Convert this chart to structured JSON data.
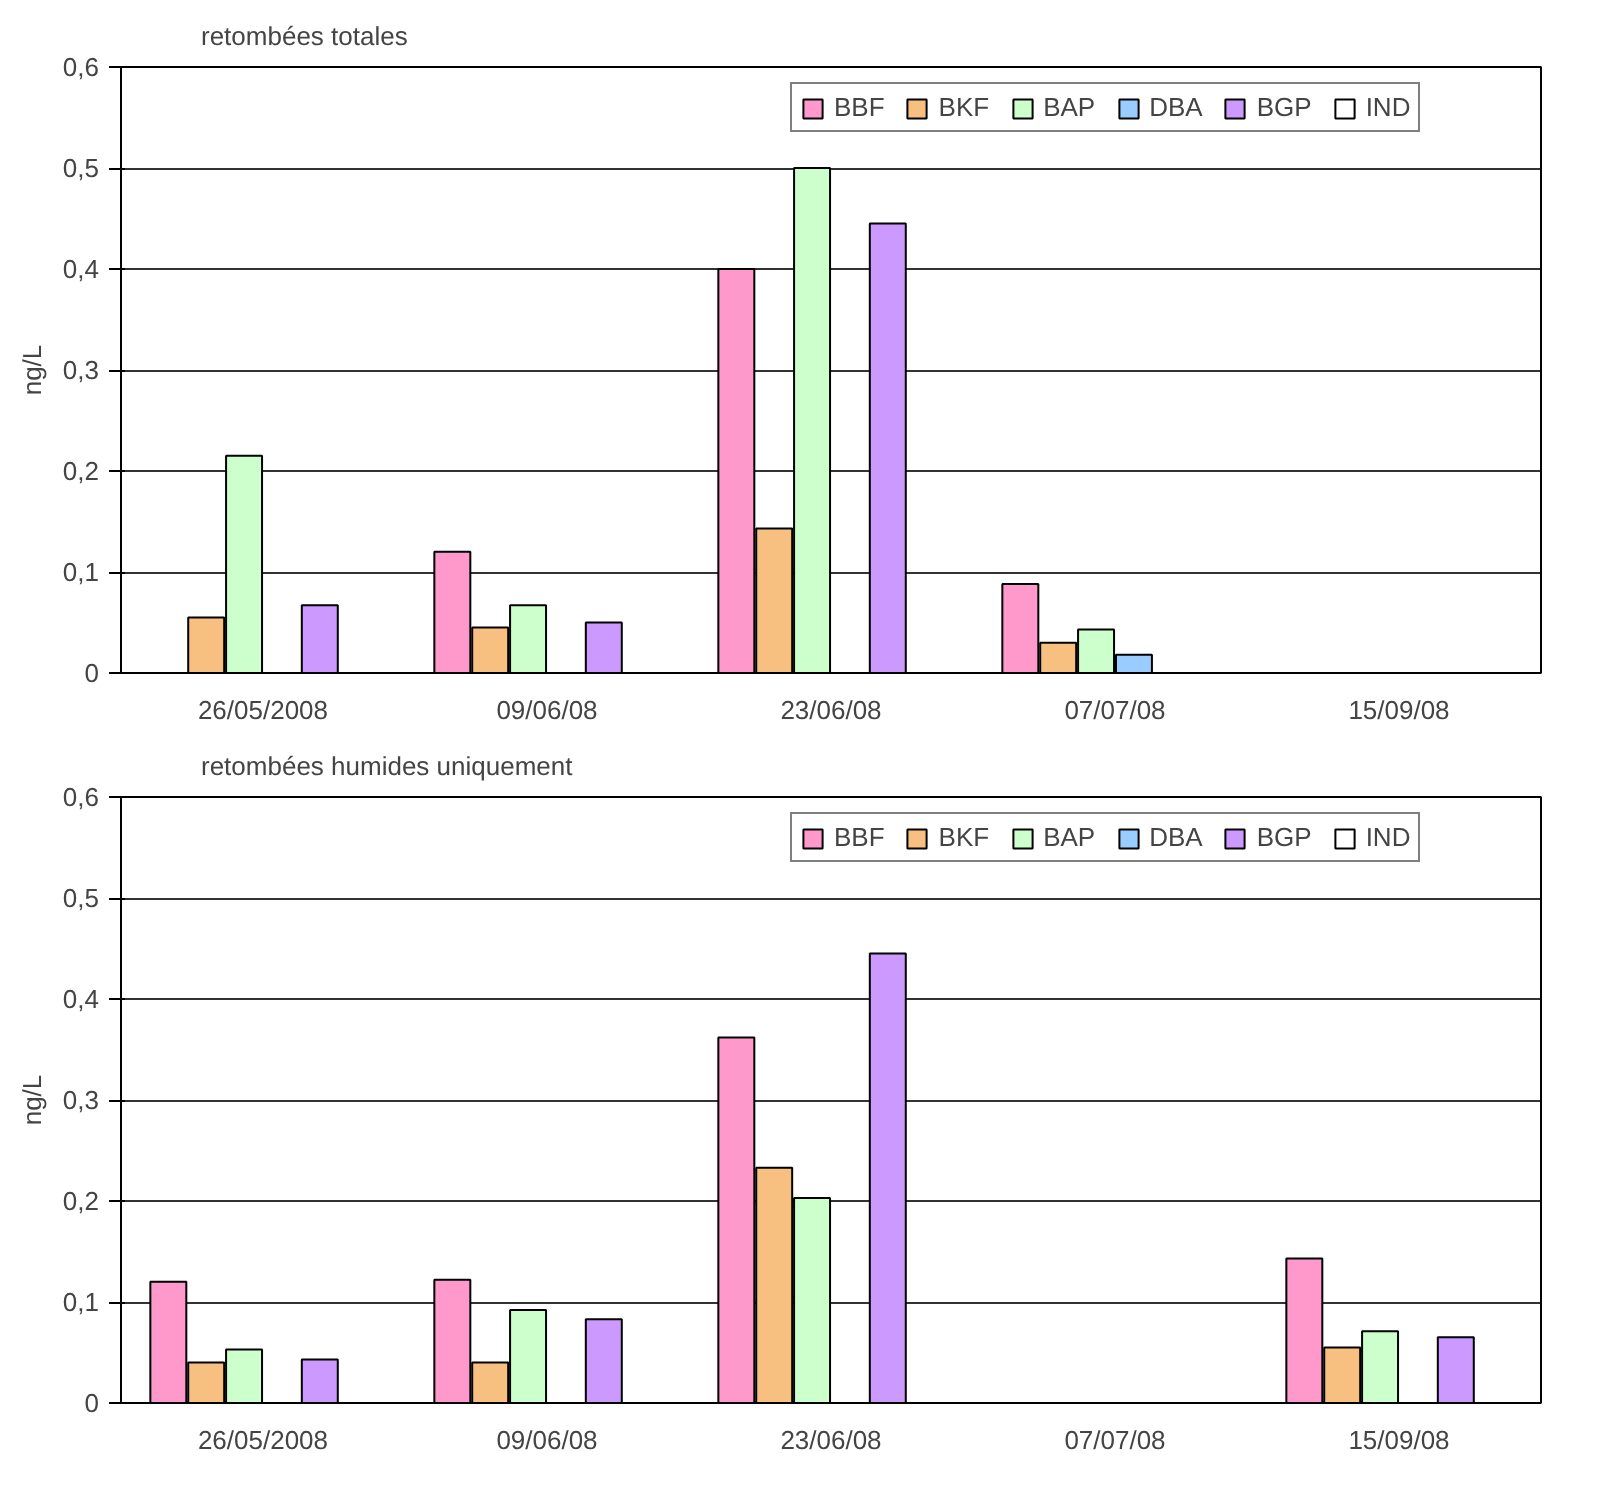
{
  "chart_data": [
    {
      "type": "bar",
      "title": "retombées totales",
      "ylabel": "ng/L",
      "categories": [
        "26/05/2008",
        "09/06/08",
        "23/06/08",
        "07/07/08",
        "15/09/08"
      ],
      "ylim": [
        0,
        0.6
      ],
      "yticks": [
        0,
        {
          "value": 0.1,
          "label": "0,1"
        },
        {
          "value": 0.2,
          "label": "0,2"
        },
        {
          "value": 0.3,
          "label": "0,3"
        },
        {
          "value": 0.4,
          "label": "0,4"
        },
        {
          "value": 0.5,
          "label": "0,5"
        },
        {
          "value": 0.6,
          "label": "0,6"
        }
      ],
      "grid": "y",
      "legend": "top right",
      "series": [
        {
          "name": "BBF",
          "color": "#ff99cc",
          "values": [
            null,
            0.12,
            0.4,
            0.088,
            null
          ]
        },
        {
          "name": "BKF",
          "color": "#f8c080",
          "values": [
            0.055,
            0.045,
            0.143,
            0.03,
            null
          ]
        },
        {
          "name": "BAP",
          "color": "#ccffcc",
          "values": [
            0.215,
            0.067,
            0.5,
            0.043,
            null
          ]
        },
        {
          "name": "DBA",
          "color": "#99ccff",
          "values": [
            null,
            null,
            null,
            0.018,
            null
          ]
        },
        {
          "name": "BGP",
          "color": "#cc99ff",
          "values": [
            0.067,
            0.05,
            0.445,
            null,
            null
          ]
        },
        {
          "name": "IND",
          "color": "#ffffff",
          "values": [
            null,
            null,
            null,
            null,
            null
          ]
        }
      ]
    },
    {
      "type": "bar",
      "title": "retombées humides uniquement",
      "ylabel": "ng/L",
      "categories": [
        "26/05/2008",
        "09/06/08",
        "23/06/08",
        "07/07/08",
        "15/09/08"
      ],
      "ylim": [
        0,
        0.6
      ],
      "yticks": [
        0,
        {
          "value": 0.1,
          "label": "0,1"
        },
        {
          "value": 0.2,
          "label": "0,2"
        },
        {
          "value": 0.3,
          "label": "0,3"
        },
        {
          "value": 0.4,
          "label": "0,4"
        },
        {
          "value": 0.5,
          "label": "0,5"
        },
        {
          "value": 0.6,
          "label": "0,6"
        }
      ],
      "grid": "y",
      "legend": "top right",
      "series": [
        {
          "name": "BBF",
          "color": "#ff99cc",
          "values": [
            0.12,
            0.122,
            0.362,
            null,
            0.143
          ]
        },
        {
          "name": "BKF",
          "color": "#f8c080",
          "values": [
            0.04,
            0.04,
            0.233,
            null,
            0.055
          ]
        },
        {
          "name": "BAP",
          "color": "#ccffcc",
          "values": [
            0.053,
            0.092,
            0.203,
            null,
            0.071
          ]
        },
        {
          "name": "DBA",
          "color": "#99ccff",
          "values": [
            null,
            null,
            null,
            null,
            null
          ]
        },
        {
          "name": "BGP",
          "color": "#cc99ff",
          "values": [
            0.043,
            0.083,
            0.445,
            null,
            0.065
          ]
        },
        {
          "name": "IND",
          "color": "#ffffff",
          "values": [
            null,
            null,
            null,
            null,
            null
          ]
        }
      ]
    }
  ]
}
